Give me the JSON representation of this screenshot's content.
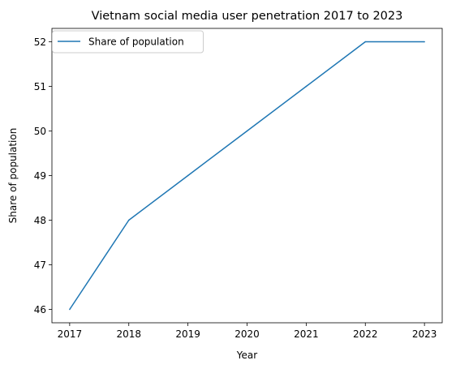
{
  "chart_data": {
    "type": "line",
    "title": "Vietnam social media user penetration 2017 to 2023",
    "xlabel": "Year",
    "ylabel": "Share of population",
    "x": [
      2017,
      2018,
      2019,
      2020,
      2021,
      2022,
      2023
    ],
    "series": [
      {
        "name": "Share of population",
        "values": [
          46,
          48,
          49,
          50,
          51,
          52,
          52
        ],
        "color": "#1f77b4"
      }
    ],
    "xlim": [
      2016.7,
      2023.3
    ],
    "ylim": [
      45.7,
      52.3
    ],
    "xticks": [
      "2017",
      "2018",
      "2019",
      "2020",
      "2021",
      "2022",
      "2023"
    ],
    "yticks": [
      "46",
      "47",
      "48",
      "49",
      "50",
      "51",
      "52"
    ],
    "grid": false,
    "legend_position": "upper-left"
  }
}
